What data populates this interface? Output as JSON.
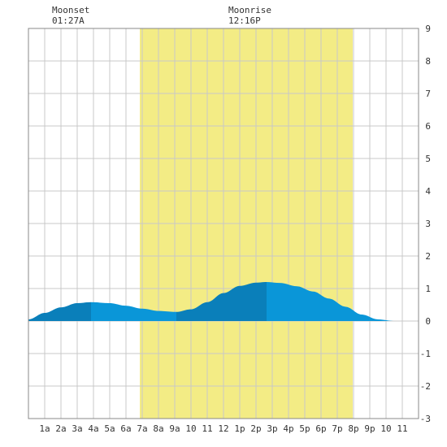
{
  "chart_data": {
    "type": "area",
    "title": "",
    "xlabel": "",
    "ylabel": "",
    "x_range": [
      0,
      24
    ],
    "ylim": [
      -3,
      9
    ],
    "grid": true,
    "x_ticks": [
      {
        "x": 1,
        "label": "1a"
      },
      {
        "x": 2,
        "label": "2a"
      },
      {
        "x": 3,
        "label": "3a"
      },
      {
        "x": 4,
        "label": "4a"
      },
      {
        "x": 5,
        "label": "5a"
      },
      {
        "x": 6,
        "label": "6a"
      },
      {
        "x": 7,
        "label": "7a"
      },
      {
        "x": 8,
        "label": "8a"
      },
      {
        "x": 9,
        "label": "9a"
      },
      {
        "x": 10,
        "label": "10"
      },
      {
        "x": 11,
        "label": "11"
      },
      {
        "x": 12,
        "label": "12"
      },
      {
        "x": 13,
        "label": "1p"
      },
      {
        "x": 14,
        "label": "2p"
      },
      {
        "x": 15,
        "label": "3p"
      },
      {
        "x": 16,
        "label": "4p"
      },
      {
        "x": 17,
        "label": "5p"
      },
      {
        "x": 18,
        "label": "6p"
      },
      {
        "x": 19,
        "label": "7p"
      },
      {
        "x": 20,
        "label": "8p"
      },
      {
        "x": 21,
        "label": "9p"
      },
      {
        "x": 22,
        "label": "10"
      },
      {
        "x": 23,
        "label": "11"
      }
    ],
    "y_ticks": [
      -3,
      -2,
      -1,
      0,
      1,
      2,
      3,
      4,
      5,
      6,
      7,
      8,
      9
    ],
    "daylight": {
      "start": 6.85,
      "end": 19.95
    },
    "tide_segments": [
      {
        "from": 0.0,
        "to": 3.85,
        "phase": "rising"
      },
      {
        "from": 3.85,
        "to": 9.1,
        "phase": "falling"
      },
      {
        "from": 9.1,
        "to": 14.65,
        "phase": "rising"
      },
      {
        "from": 14.65,
        "to": 24.0,
        "phase": "falling"
      }
    ],
    "extrema": [
      {
        "x": 3.85,
        "y": 0.58
      },
      {
        "x": 9.1,
        "y": 0.28
      },
      {
        "x": 14.65,
        "y": 1.2
      },
      {
        "x": 23.0,
        "y": 0.0
      }
    ],
    "tide_curve": [
      [
        0.0,
        0.05
      ],
      [
        1.0,
        0.25
      ],
      [
        2.0,
        0.42
      ],
      [
        3.0,
        0.55
      ],
      [
        3.85,
        0.58
      ],
      [
        5.0,
        0.55
      ],
      [
        6.0,
        0.47
      ],
      [
        7.0,
        0.38
      ],
      [
        8.0,
        0.31
      ],
      [
        9.1,
        0.28
      ],
      [
        10.0,
        0.36
      ],
      [
        11.0,
        0.58
      ],
      [
        12.0,
        0.86
      ],
      [
        13.0,
        1.08
      ],
      [
        14.0,
        1.18
      ],
      [
        14.65,
        1.2
      ],
      [
        15.5,
        1.17
      ],
      [
        16.5,
        1.07
      ],
      [
        17.5,
        0.91
      ],
      [
        18.5,
        0.69
      ],
      [
        19.5,
        0.44
      ],
      [
        20.5,
        0.2
      ],
      [
        21.5,
        0.05
      ],
      [
        22.5,
        0.0
      ],
      [
        24.0,
        0.0
      ]
    ],
    "annotations": [
      {
        "label": "Moonset",
        "time": "01:27A",
        "x": 1.45
      },
      {
        "label": "Moonrise",
        "time": "12:16P",
        "x": 12.27
      }
    ],
    "colors": {
      "daylight": "#f3ec85",
      "rising": "#0a7fba",
      "falling": "#0a96d8",
      "grid": "#c8c8c8",
      "border": "#888888",
      "text": "#333333"
    }
  }
}
